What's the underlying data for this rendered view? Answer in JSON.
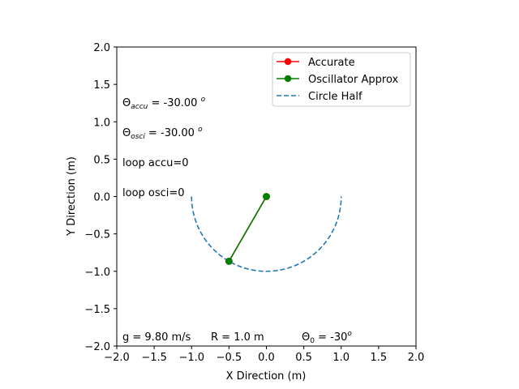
{
  "chart_data": {
    "type": "line",
    "xlabel": "X Direction (m)",
    "ylabel": "Y Direction (m)",
    "xlim": [
      -2.0,
      2.0
    ],
    "ylim": [
      -2.0,
      2.0
    ],
    "xticks": [
      "−2.0",
      "−1.5",
      "−1.0",
      "−0.5",
      "0.0",
      "0.5",
      "1.0",
      "1.5",
      "2.0"
    ],
    "yticks": [
      "−2.0",
      "−1.5",
      "−1.0",
      "−0.5",
      "0.0",
      "0.5",
      "1.0",
      "1.5",
      "2.0"
    ],
    "grid": false,
    "legend_position": "top-right",
    "series": [
      {
        "name": "Accurate",
        "color": "#ff0000",
        "style": "solid-marker",
        "x": [
          0.0,
          -0.5
        ],
        "y": [
          0.0,
          -0.866
        ]
      },
      {
        "name": "Oscillator Approx",
        "color": "#008000",
        "style": "solid-marker",
        "x": [
          0.0,
          -0.5
        ],
        "y": [
          0.0,
          -0.866
        ]
      },
      {
        "name": "Circle Half",
        "color": "#1f77b4",
        "style": "dashed",
        "function": "lower semicircle, radius 1.0",
        "x_range": [
          -1.0,
          1.0
        ]
      }
    ],
    "annotations": {
      "theta_accu": {
        "symbol": "Θ",
        "subscript": "accu",
        "value": " = -30.00 ",
        "unit": "o"
      },
      "theta_osci": {
        "symbol": "Θ",
        "subscript": "osci",
        "value": " = -30.00 ",
        "unit": "o"
      },
      "loop_accu": "loop accu=0",
      "loop_osci": "loop osci=0",
      "gravity": "g = 9.80 m/s",
      "radius": "R = 1.0 m",
      "theta0": {
        "symbol": "Θ",
        "subscript": "0",
        "value": " = -30",
        "unit": "o"
      }
    }
  }
}
